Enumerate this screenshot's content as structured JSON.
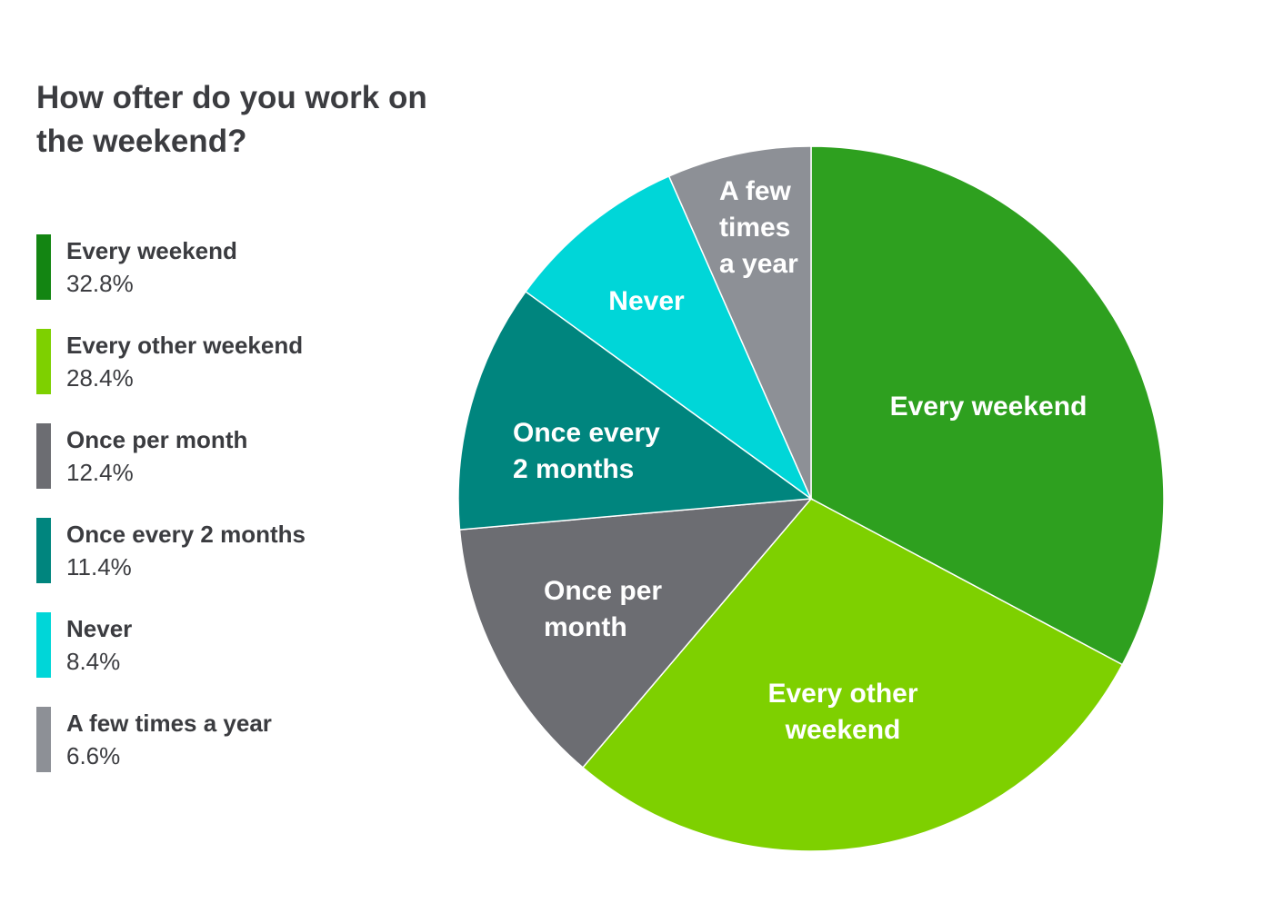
{
  "chart_data": {
    "type": "pie",
    "title": "How ofter do you work on the weekend?",
    "legend_position": "left",
    "slices": [
      {
        "name": "Every weekend",
        "value": 32.8,
        "value_label": "32.8%",
        "color": "#2ea01f",
        "legend_color": "#138512",
        "label_lines": [
          "Every weekend"
        ]
      },
      {
        "name": "Every other weekend",
        "value": 28.4,
        "value_label": "28.4%",
        "color": "#7ed000",
        "legend_color": "#7ed000",
        "label_lines": [
          "Every other",
          "weekend"
        ]
      },
      {
        "name": "Once per month",
        "value": 12.4,
        "value_label": "12.4%",
        "color": "#6c6d72",
        "legend_color": "#6c6d72",
        "label_lines": [
          "Once per",
          "month"
        ]
      },
      {
        "name": "Once every 2 months",
        "value": 11.4,
        "value_label": "11.4%",
        "color": "#00857e",
        "legend_color": "#00857e",
        "label_lines": [
          "Once every",
          "2 months"
        ]
      },
      {
        "name": "Never",
        "value": 8.4,
        "value_label": "8.4%",
        "color": "#00d6d8",
        "legend_color": "#00d6d8",
        "label_lines": [
          "Never"
        ]
      },
      {
        "name": "A few times a year",
        "value": 6.6,
        "value_label": "6.6%",
        "color": "#8d9096",
        "legend_color": "#8d9096",
        "label_lines": [
          "A few",
          "times",
          "a year"
        ]
      }
    ]
  }
}
